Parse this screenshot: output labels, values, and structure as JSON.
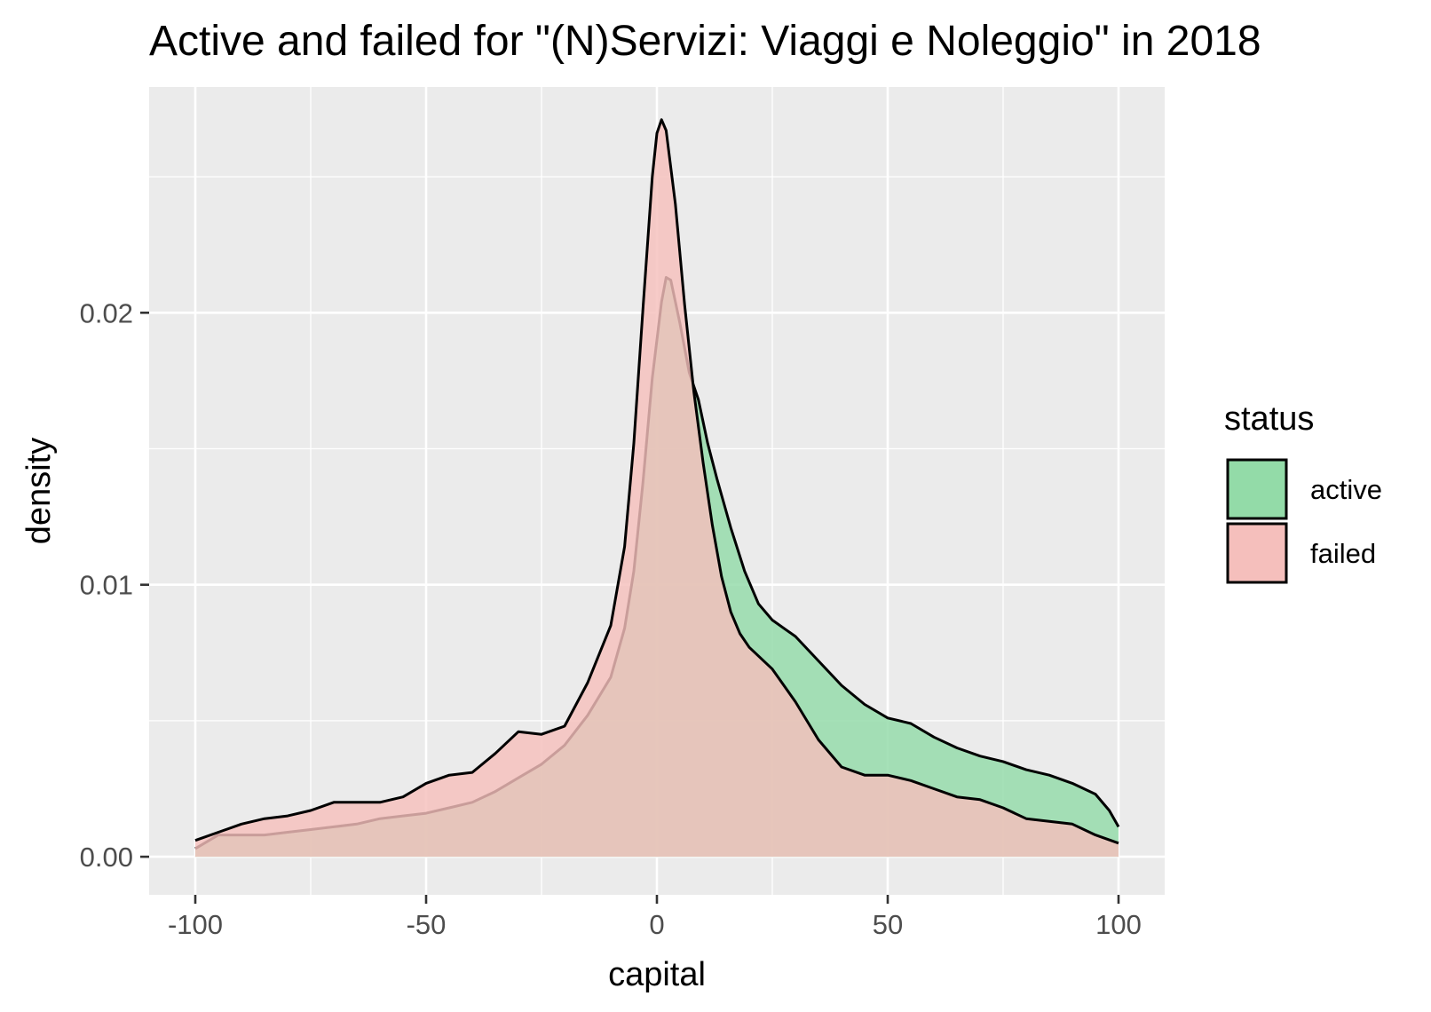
{
  "chart_data": {
    "type": "area",
    "title": "Active and failed for \"(N)Servizi: Viaggi e Noleggio\" in 2018",
    "xlabel": "capital",
    "ylabel": "density",
    "xlim": [
      -110,
      110
    ],
    "ylim": [
      -0.0014,
      0.0283
    ],
    "x_ticks": [
      -100,
      -50,
      0,
      50,
      100
    ],
    "x_tick_labels": [
      "-100",
      "-50",
      "0",
      "50",
      "100"
    ],
    "y_ticks": [
      0,
      0.01,
      0.02
    ],
    "y_tick_labels": [
      "0.00",
      "0.01",
      "0.02"
    ],
    "grid": true,
    "legend": {
      "title": "status",
      "position": "right"
    },
    "series": [
      {
        "name": "active",
        "color": "#93dba8",
        "points": [
          [
            -100,
            0.0003
          ],
          [
            -95,
            0.0008
          ],
          [
            -90,
            0.0008
          ],
          [
            -85,
            0.0008
          ],
          [
            -80,
            0.0009
          ],
          [
            -75,
            0.001
          ],
          [
            -70,
            0.0011
          ],
          [
            -65,
            0.0012
          ],
          [
            -60,
            0.0014
          ],
          [
            -55,
            0.0015
          ],
          [
            -50,
            0.0016
          ],
          [
            -45,
            0.0018
          ],
          [
            -40,
            0.002
          ],
          [
            -35,
            0.0024
          ],
          [
            -30,
            0.0029
          ],
          [
            -25,
            0.0034
          ],
          [
            -20,
            0.0041
          ],
          [
            -15,
            0.0052
          ],
          [
            -10,
            0.0066
          ],
          [
            -7,
            0.0084
          ],
          [
            -5,
            0.0105
          ],
          [
            -3,
            0.0138
          ],
          [
            -1,
            0.0176
          ],
          [
            1,
            0.0204
          ],
          [
            2,
            0.0213
          ],
          [
            3,
            0.0212
          ],
          [
            5,
            0.0196
          ],
          [
            7,
            0.0178
          ],
          [
            9,
            0.0168
          ],
          [
            11,
            0.0152
          ],
          [
            13,
            0.0139
          ],
          [
            16,
            0.0121
          ],
          [
            19,
            0.0105
          ],
          [
            22,
            0.0093
          ],
          [
            25,
            0.0087
          ],
          [
            30,
            0.0081
          ],
          [
            35,
            0.0072
          ],
          [
            40,
            0.0063
          ],
          [
            45,
            0.0056
          ],
          [
            50,
            0.0051
          ],
          [
            55,
            0.0049
          ],
          [
            60,
            0.0044
          ],
          [
            65,
            0.004
          ],
          [
            70,
            0.0037
          ],
          [
            75,
            0.0035
          ],
          [
            80,
            0.0032
          ],
          [
            85,
            0.003
          ],
          [
            90,
            0.0027
          ],
          [
            95,
            0.0023
          ],
          [
            98,
            0.0017
          ],
          [
            100,
            0.0011
          ]
        ]
      },
      {
        "name": "failed",
        "color": "#f5bfbc",
        "points": [
          [
            -100,
            0.0006
          ],
          [
            -95,
            0.0009
          ],
          [
            -90,
            0.0012
          ],
          [
            -85,
            0.0014
          ],
          [
            -80,
            0.0015
          ],
          [
            -75,
            0.0017
          ],
          [
            -70,
            0.002
          ],
          [
            -65,
            0.002
          ],
          [
            -60,
            0.002
          ],
          [
            -55,
            0.0022
          ],
          [
            -50,
            0.0027
          ],
          [
            -45,
            0.003
          ],
          [
            -40,
            0.0031
          ],
          [
            -35,
            0.0038
          ],
          [
            -30,
            0.0046
          ],
          [
            -25,
            0.0045
          ],
          [
            -20,
            0.0048
          ],
          [
            -15,
            0.0064
          ],
          [
            -10,
            0.0085
          ],
          [
            -7,
            0.0114
          ],
          [
            -5,
            0.0152
          ],
          [
            -3,
            0.0202
          ],
          [
            -1,
            0.025
          ],
          [
            0,
            0.0266
          ],
          [
            1,
            0.0271
          ],
          [
            2,
            0.0267
          ],
          [
            4,
            0.024
          ],
          [
            6,
            0.0203
          ],
          [
            8,
            0.0171
          ],
          [
            10,
            0.0145
          ],
          [
            12,
            0.0122
          ],
          [
            14,
            0.0103
          ],
          [
            16,
            0.009
          ],
          [
            18,
            0.0082
          ],
          [
            20,
            0.0077
          ],
          [
            25,
            0.0069
          ],
          [
            30,
            0.0057
          ],
          [
            35,
            0.0043
          ],
          [
            40,
            0.0033
          ],
          [
            45,
            0.003
          ],
          [
            50,
            0.003
          ],
          [
            55,
            0.0028
          ],
          [
            60,
            0.0025
          ],
          [
            65,
            0.0022
          ],
          [
            70,
            0.0021
          ],
          [
            75,
            0.0018
          ],
          [
            80,
            0.0014
          ],
          [
            85,
            0.0013
          ],
          [
            90,
            0.0012
          ],
          [
            95,
            0.0008
          ],
          [
            100,
            0.0005
          ]
        ]
      }
    ]
  }
}
